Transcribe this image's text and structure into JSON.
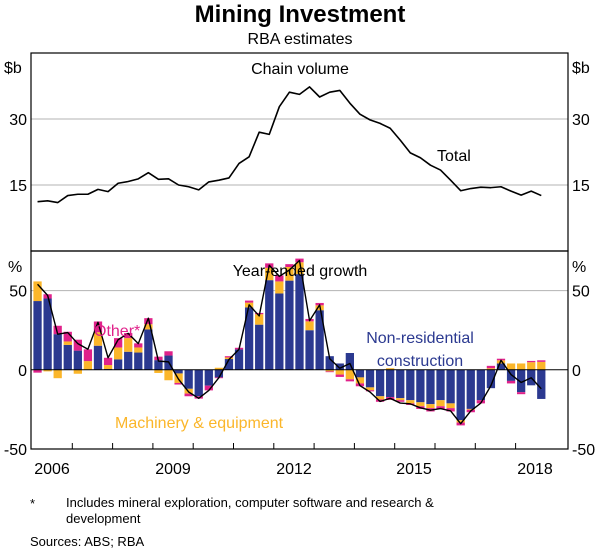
{
  "chart_data": {
    "title": "Mining Investment",
    "subtitle": "RBA estimates",
    "x_start": "2006-Q1",
    "frequency": "quarterly",
    "x_tick_labels": [
      "2006",
      "2009",
      "2012",
      "2015",
      "2018"
    ],
    "x_year_range": [
      2006,
      2019
    ],
    "panels": [
      {
        "type": "line",
        "title": "Chain volume",
        "ylabel_left": "$b",
        "ylabel_right": "$b",
        "ylim": [
          0,
          45
        ],
        "y_ticks": [
          15,
          30
        ],
        "grid": true,
        "series": [
          {
            "name": "Total",
            "color": "#000000",
            "values": [
              11.2,
              11.4,
              11.0,
              12.6,
              12.9,
              12.9,
              14.0,
              13.5,
              15.4,
              15.8,
              16.4,
              17.8,
              16.3,
              16.4,
              15.0,
              14.6,
              13.9,
              15.7,
              16.1,
              16.6,
              19.9,
              21.4,
              27.0,
              26.5,
              32.8,
              36.1,
              35.6,
              37.3,
              35.0,
              36.1,
              36.5,
              33.6,
              31.1,
              29.8,
              29.0,
              27.9,
              25.2,
              22.3,
              21.2,
              19.5,
              18.4,
              16.1,
              13.7,
              14.2,
              14.5,
              14.4,
              14.6,
              13.6,
              12.7,
              13.6,
              12.6
            ]
          }
        ]
      },
      {
        "type": "bar",
        "stacked": true,
        "title": "Year-ended growth",
        "ylabel_left": "%",
        "ylabel_right": "%",
        "ylim": [
          -50,
          75
        ],
        "y_ticks": [
          -50,
          0,
          50
        ],
        "grid": true,
        "series": [
          {
            "name": "Non-residential construction",
            "color": "#2B3990",
            "values": [
              43.4,
              45,
              22.5,
              15.7,
              12.1,
              0,
              15.2,
              0.5,
              6.6,
              11.4,
              10.9,
              25.5,
              6.1,
              9,
              -2.3,
              -12,
              -16.7,
              -10,
              -4.8,
              6.8,
              12.9,
              39.4,
              28.5,
              56.6,
              48.2,
              56.3,
              60.4,
              25,
              37.6,
              8.6,
              4,
              10.6,
              -4.8,
              -11.1,
              -16.7,
              -17.2,
              -17.9,
              -19.2,
              -20.5,
              -21.7,
              -19.2,
              -21.2,
              -31.8,
              -24.7,
              -19.2,
              -11.6,
              4,
              -7,
              -14.1,
              -9.8,
              -18.4
            ]
          },
          {
            "name": "Machinery & equipment",
            "color": "#FBB62A",
            "values": [
              12.4,
              -1,
              -5.3,
              2.2,
              -2.5,
              5.5,
              8.5,
              2.5,
              7.5,
              8.6,
              3.2,
              3.3,
              -2,
              -6.6,
              -6,
              -3,
              0,
              0,
              1.3,
              1,
              0,
              3,
              6.6,
              7.8,
              7.6,
              8.6,
              7.5,
              5.6,
              3.1,
              -1,
              -3,
              -6,
              -3.8,
              -1.8,
              -2,
              1,
              -1.3,
              -2,
              -2.5,
              -2.5,
              -3.8,
              -3,
              -1.5,
              -0.5,
              0,
              1,
              2,
              4,
              4,
              4.8,
              5
            ]
          },
          {
            "name": "Other*",
            "color": "#E0218A",
            "values": [
              -1.8,
              2.7,
              5.3,
              6.1,
              6.9,
              7.4,
              6.8,
              4.6,
              5.9,
              3.2,
              2.6,
              3.8,
              2.2,
              2.7,
              -1,
              -1.7,
              -1.5,
              -3,
              -0.5,
              0.8,
              1,
              1.3,
              0.8,
              2.8,
              3.8,
              1.8,
              2.3,
              1.5,
              1.5,
              -0.5,
              -1.5,
              -1.3,
              -1.8,
              -0.7,
              -1.5,
              -1.8,
              -1,
              -1,
              -1.7,
              -2.1,
              -1.7,
              -2.1,
              -1.8,
              -1.6,
              -2,
              1.5,
              1,
              -1.6,
              -1.3,
              0.8,
              1
            ]
          },
          {
            "name": "Total",
            "type": "line",
            "color": "#000000",
            "values": [
              54,
              47,
              22.5,
              23.5,
              16.5,
              13,
              30,
              7.6,
              19,
              23,
              16.5,
              32.6,
              5.5,
              5,
              -6,
              -14,
              -18,
              -13,
              -5,
              6.5,
              13,
              41,
              34,
              66,
              59,
              63,
              69,
              31,
              41,
              7,
              1,
              4,
              -10,
              -14,
              -20,
              -18,
              -21,
              -21.5,
              -24,
              -25.5,
              -24.5,
              -26,
              -34,
              -26,
              -21,
              -10,
              6,
              -3,
              -8,
              -5,
              -12
            ]
          }
        ],
        "annotations": [
          {
            "text": "Other*",
            "color": "#E0218A"
          },
          {
            "text": "Non-residential construction",
            "lines": [
              "Non-residential",
              "construction"
            ],
            "color": "#2B3990"
          },
          {
            "text": "Machinery & equipment",
            "color": "#FBB62A"
          }
        ]
      }
    ]
  },
  "labels": {
    "title": "Mining Investment",
    "subtitle": "RBA estimates",
    "top_panel_title": "Chain volume",
    "top_unit_left": "$b",
    "top_unit_right": "$b",
    "top_ticks": [
      "30",
      "15"
    ],
    "top_series_label": "Total",
    "bottom_panel_title": "Year-ended growth",
    "bottom_unit_left": "%",
    "bottom_unit_right": "%",
    "bottom_ticks": [
      "50",
      "0",
      "-50"
    ],
    "label_other": "Other*",
    "label_nonres_1": "Non-residential",
    "label_nonres_2": "construction",
    "label_machinery": "Machinery & equipment",
    "x_ticks": [
      "2006",
      "2009",
      "2012",
      "2015",
      "2018"
    ]
  },
  "notes": {
    "star": "*",
    "footnote": "Includes mineral exploration, computer software and research & development",
    "sources": "Sources: ABS; RBA"
  }
}
